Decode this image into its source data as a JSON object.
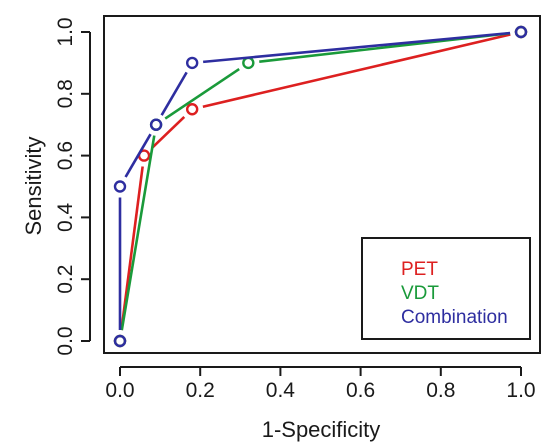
{
  "chart_data": {
    "type": "line",
    "title": "",
    "xlabel": "1-Specificity",
    "ylabel": "Sensitivity",
    "xlim": [
      0,
      1
    ],
    "ylim": [
      0,
      1
    ],
    "x_ticks": [
      "0.0",
      "0.2",
      "0.4",
      "0.6",
      "0.8",
      "1.0"
    ],
    "y_ticks": [
      "0.0",
      "0.2",
      "0.4",
      "0.6",
      "0.8",
      "1.0"
    ],
    "grid": false,
    "legend_position": "bottom-right",
    "series": [
      {
        "name": "PET",
        "color": "#dd2020",
        "x": [
          0,
          0.06,
          0.18,
          1.0
        ],
        "y": [
          0,
          0.6,
          0.75,
          1.0
        ]
      },
      {
        "name": "VDT",
        "color": "#1a9a3a",
        "x": [
          0,
          0.09,
          0.32,
          1.0
        ],
        "y": [
          0,
          0.7,
          0.9,
          1.0
        ]
      },
      {
        "name": "Combination",
        "color": "#2e2ea0",
        "x": [
          0,
          0,
          0.09,
          0.18,
          1.0
        ],
        "y": [
          0,
          0.5,
          0.7,
          0.9,
          1.0
        ]
      }
    ]
  }
}
